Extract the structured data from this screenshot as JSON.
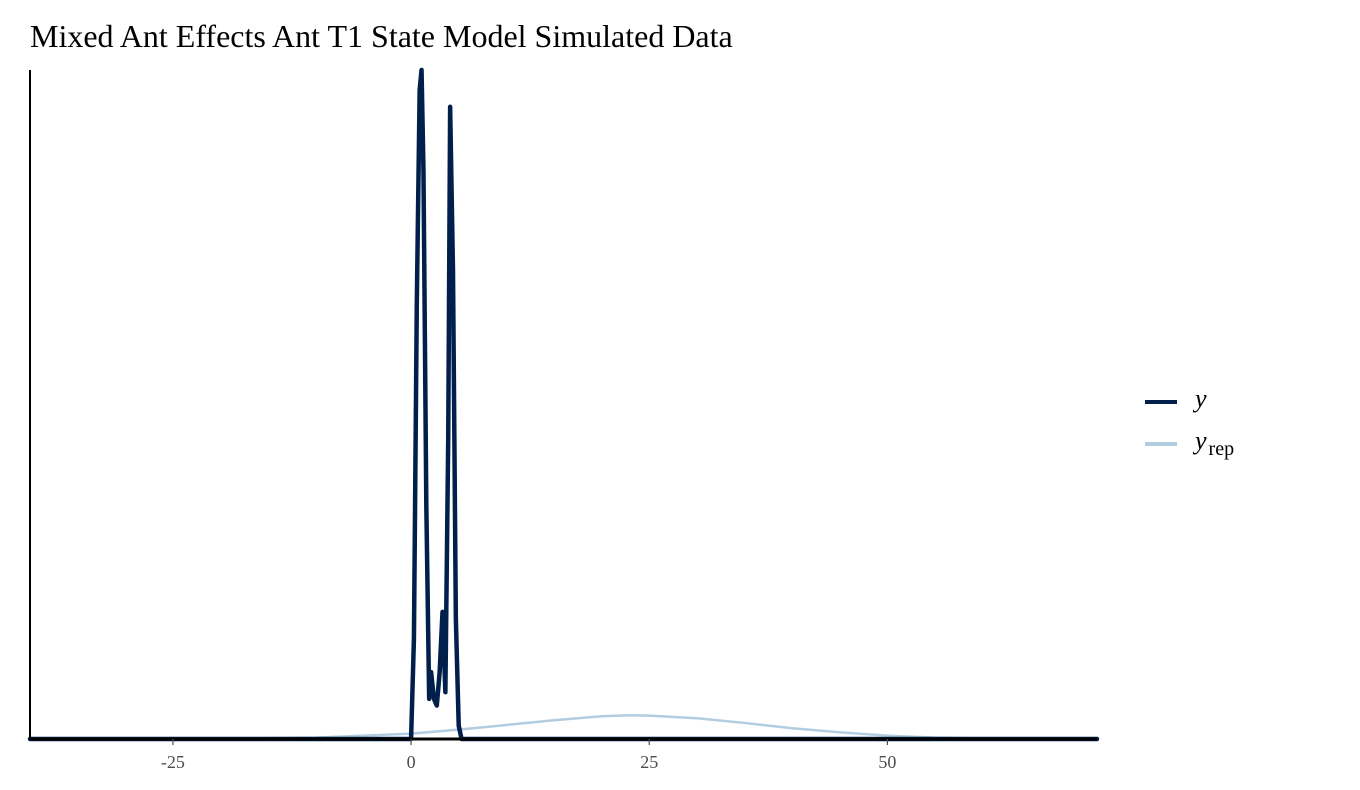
{
  "chart_data": {
    "type": "line",
    "title": "Mixed Ant Effects Ant T1 State Model Simulated Data",
    "xlabel": "",
    "ylabel": "",
    "xlim": [
      -40,
      72
    ],
    "ylim": [
      0,
      1.0
    ],
    "x_ticks": [
      -25,
      0,
      25,
      50
    ],
    "x_tick_labels": [
      "-25",
      "0",
      "25",
      "50"
    ],
    "y_ticks_visible": false,
    "grid": false,
    "legend_position": "right",
    "colors": {
      "y": "#011f4b",
      "y_rep": "#b3cde0",
      "axis": "#000000",
      "tick_label": "#4d4d4d"
    },
    "series": [
      {
        "name": "y",
        "legend_main": "y",
        "legend_sub": "",
        "x": [
          -40,
          0.0,
          0.3,
          0.6,
          0.9,
          1.1,
          1.3,
          1.6,
          1.9,
          2.1,
          2.4,
          2.7,
          3.0,
          3.3,
          3.6,
          3.9,
          4.1,
          4.4,
          4.7,
          5.0,
          5.3,
          72
        ],
        "y": [
          0,
          0,
          0.15,
          0.65,
          0.97,
          1.0,
          0.85,
          0.35,
          0.06,
          0.1,
          0.06,
          0.05,
          0.1,
          0.19,
          0.07,
          0.45,
          0.945,
          0.7,
          0.18,
          0.02,
          0,
          0
        ]
      },
      {
        "name": "y_rep",
        "legend_main": "y",
        "legend_sub": "rep",
        "x": [
          -40,
          -30,
          -20,
          -10,
          -5,
          0,
          5,
          10,
          15,
          20,
          23,
          25,
          30,
          35,
          40,
          45,
          50,
          55,
          60,
          65,
          72
        ],
        "y": [
          0,
          0,
          0.0003,
          0.002,
          0.005,
          0.008,
          0.014,
          0.021,
          0.028,
          0.034,
          0.0355,
          0.035,
          0.031,
          0.024,
          0.016,
          0.01,
          0.005,
          0.002,
          0.0007,
          0.0002,
          0
        ]
      }
    ]
  }
}
